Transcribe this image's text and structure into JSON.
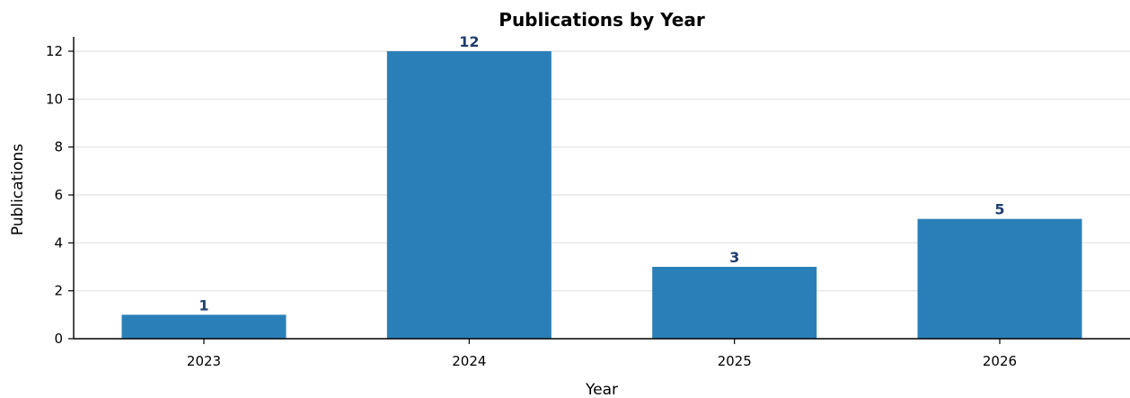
{
  "chart_data": {
    "type": "bar",
    "title": "Publications by Year",
    "xlabel": "Year",
    "ylabel": "Publications",
    "categories": [
      "2023",
      "2024",
      "2025",
      "2026"
    ],
    "values": [
      1,
      12,
      3,
      5
    ],
    "data_labels": [
      "1",
      "12",
      "3",
      "5"
    ],
    "ylim": [
      0,
      12.6
    ],
    "yticks": [
      0,
      2,
      4,
      6,
      8,
      10,
      12
    ],
    "ytick_labels": [
      "0",
      "2",
      "4",
      "6",
      "8",
      "10",
      "12"
    ],
    "grid": "y",
    "legend": "none",
    "colors": {
      "bar": "#2b7fb8",
      "data_label": "#1f3d6e"
    }
  }
}
